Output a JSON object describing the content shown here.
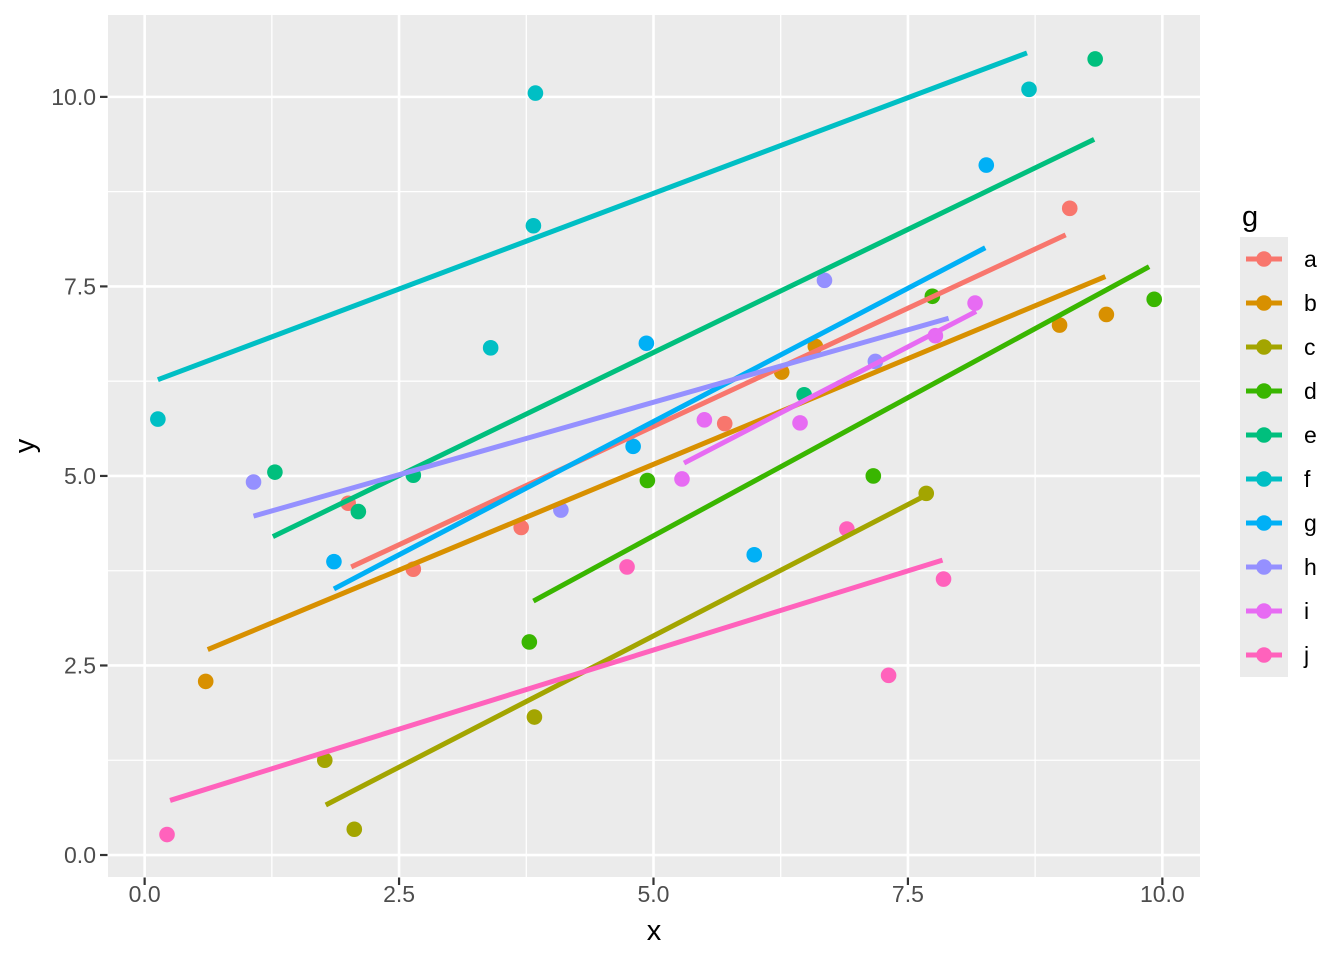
{
  "chart_data": {
    "type": "scatter",
    "title": "",
    "xlabel": "x",
    "ylabel": "y",
    "legend_title": "g",
    "legend_position": "right",
    "grid": true,
    "x_ticks": {
      "values": [
        0.0,
        2.5,
        5.0,
        7.5,
        10.0
      ],
      "labels": [
        "0.0",
        "2.5",
        "5.0",
        "7.5",
        "10.0"
      ]
    },
    "y_ticks": {
      "values": [
        0.0,
        2.5,
        5.0,
        7.5,
        10.0
      ],
      "labels": [
        "0.0",
        "2.5",
        "5.0",
        "7.5",
        "10.0"
      ]
    },
    "x_minor_ticks": [
      1.25,
      3.75,
      6.25,
      8.75
    ],
    "y_minor_ticks": [
      1.25,
      3.75,
      6.25,
      8.75
    ],
    "xlim": [
      -0.36,
      10.37
    ],
    "ylim": [
      -0.29,
      11.08
    ],
    "series": [
      {
        "name": "a",
        "color": "#F8766D",
        "points": [
          [
            2.0,
            4.64
          ],
          [
            2.64,
            3.77
          ],
          [
            3.7,
            4.32
          ],
          [
            5.7,
            5.69
          ],
          [
            9.09,
            8.53
          ]
        ],
        "trend": {
          "x1": 2.03,
          "y1": 3.8,
          "x2": 9.05,
          "y2": 8.18
        }
      },
      {
        "name": "b",
        "color": "#D89000",
        "points": [
          [
            0.6,
            2.29
          ],
          [
            6.26,
            6.37
          ],
          [
            6.59,
            6.71
          ],
          [
            8.99,
            6.99
          ],
          [
            9.45,
            7.13
          ]
        ],
        "trend": {
          "x1": 0.62,
          "y1": 2.71,
          "x2": 9.44,
          "y2": 7.63
        }
      },
      {
        "name": "c",
        "color": "#A3A500",
        "points": [
          [
            1.77,
            1.25
          ],
          [
            2.06,
            0.34
          ],
          [
            3.83,
            1.82
          ],
          [
            7.68,
            4.77
          ]
        ],
        "trend": {
          "x1": 1.78,
          "y1": 0.66,
          "x2": 7.67,
          "y2": 4.74
        }
      },
      {
        "name": "d",
        "color": "#39B600",
        "points": [
          [
            3.78,
            2.81
          ],
          [
            4.94,
            4.94
          ],
          [
            7.16,
            5.0
          ],
          [
            7.74,
            7.37
          ],
          [
            9.92,
            7.33
          ]
        ],
        "trend": {
          "x1": 3.82,
          "y1": 3.35,
          "x2": 9.87,
          "y2": 7.76
        }
      },
      {
        "name": "e",
        "color": "#00BF7D",
        "points": [
          [
            1.28,
            5.05
          ],
          [
            2.1,
            4.53
          ],
          [
            2.64,
            5.01
          ],
          [
            6.48,
            6.07
          ],
          [
            9.34,
            10.5
          ]
        ],
        "trend": {
          "x1": 1.26,
          "y1": 4.2,
          "x2": 9.33,
          "y2": 9.44
        }
      },
      {
        "name": "f",
        "color": "#00BFC4",
        "points": [
          [
            0.13,
            5.75
          ],
          [
            3.4,
            6.69
          ],
          [
            3.82,
            8.3
          ],
          [
            3.84,
            10.05
          ],
          [
            8.69,
            10.1
          ]
        ],
        "trend": {
          "x1": 0.13,
          "y1": 6.27,
          "x2": 8.67,
          "y2": 10.58
        }
      },
      {
        "name": "g",
        "color": "#00B0F6",
        "points": [
          [
            1.86,
            3.87
          ],
          [
            4.8,
            5.39
          ],
          [
            4.93,
            6.75
          ],
          [
            5.99,
            3.96
          ],
          [
            8.27,
            9.1
          ]
        ],
        "trend": {
          "x1": 1.86,
          "y1": 3.51,
          "x2": 8.26,
          "y2": 8.01
        }
      },
      {
        "name": "h",
        "color": "#9590FF",
        "points": [
          [
            1.07,
            4.92
          ],
          [
            4.09,
            4.55
          ],
          [
            6.68,
            7.58
          ],
          [
            7.18,
            6.51
          ]
        ],
        "trend": {
          "x1": 1.07,
          "y1": 4.47,
          "x2": 7.9,
          "y2": 7.08
        }
      },
      {
        "name": "i",
        "color": "#E76BF3",
        "points": [
          [
            5.28,
            4.96
          ],
          [
            5.5,
            5.74
          ],
          [
            6.44,
            5.7
          ],
          [
            7.77,
            6.85
          ],
          [
            8.16,
            7.28
          ]
        ],
        "trend": {
          "x1": 5.3,
          "y1": 5.17,
          "x2": 8.17,
          "y2": 7.17
        }
      },
      {
        "name": "j",
        "color": "#FF62BC",
        "points": [
          [
            0.22,
            0.27
          ],
          [
            4.74,
            3.8
          ],
          [
            6.9,
            4.3
          ],
          [
            7.31,
            2.37
          ],
          [
            7.85,
            3.64
          ]
        ],
        "trend": {
          "x1": 0.25,
          "y1": 0.72,
          "x2": 7.84,
          "y2": 3.89
        }
      }
    ],
    "theme": {
      "panel_bg": "#EBEBEB",
      "grid_color": "#FFFFFF",
      "axis_text_color": "#4D4D4D",
      "title_text_color": "#000000",
      "tick_mark_color": "#333333",
      "legend_key_bg": "#EBEBEB",
      "background": "#FFFFFF"
    }
  }
}
